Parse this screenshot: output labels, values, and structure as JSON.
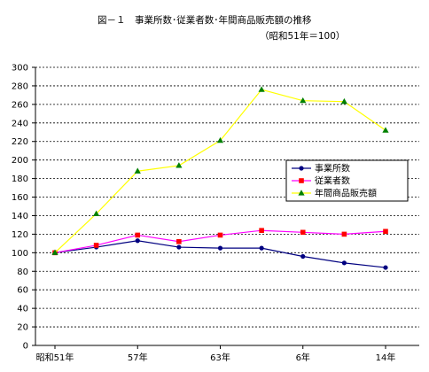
{
  "chart_data": {
    "type": "line",
    "title": "図－１　事業所数･従業者数･年間商品販売額の推移",
    "subtitle": "（昭和51年＝100）",
    "x": [
      "昭和51年",
      "",
      "57年",
      "",
      "63年",
      "",
      "6年",
      "",
      "14年"
    ],
    "x_tick_labels": [
      "昭和51年",
      "57年",
      "63年",
      "6年",
      "14年"
    ],
    "ylim": [
      0,
      300
    ],
    "yticks": [
      0,
      20,
      40,
      60,
      80,
      100,
      120,
      140,
      160,
      180,
      200,
      220,
      240,
      260,
      280,
      300
    ],
    "grid": true,
    "legend_position": "right",
    "series": [
      {
        "name": "事業所数",
        "color": "#000080",
        "marker": "circle",
        "values": [
          100,
          106,
          113,
          106,
          105,
          105,
          96,
          89,
          84
        ]
      },
      {
        "name": "従業者数",
        "color": "#ff00ff",
        "marker_color": "#ff0000",
        "marker": "square",
        "values": [
          100,
          108,
          119,
          112,
          119,
          124,
          122,
          120,
          123
        ]
      },
      {
        "name": "年間商品販売額",
        "color": "#ffff00",
        "marker_color": "#008000",
        "marker": "triangle",
        "values": [
          100,
          142,
          188,
          194,
          221,
          276,
          264,
          263,
          232
        ]
      }
    ]
  }
}
